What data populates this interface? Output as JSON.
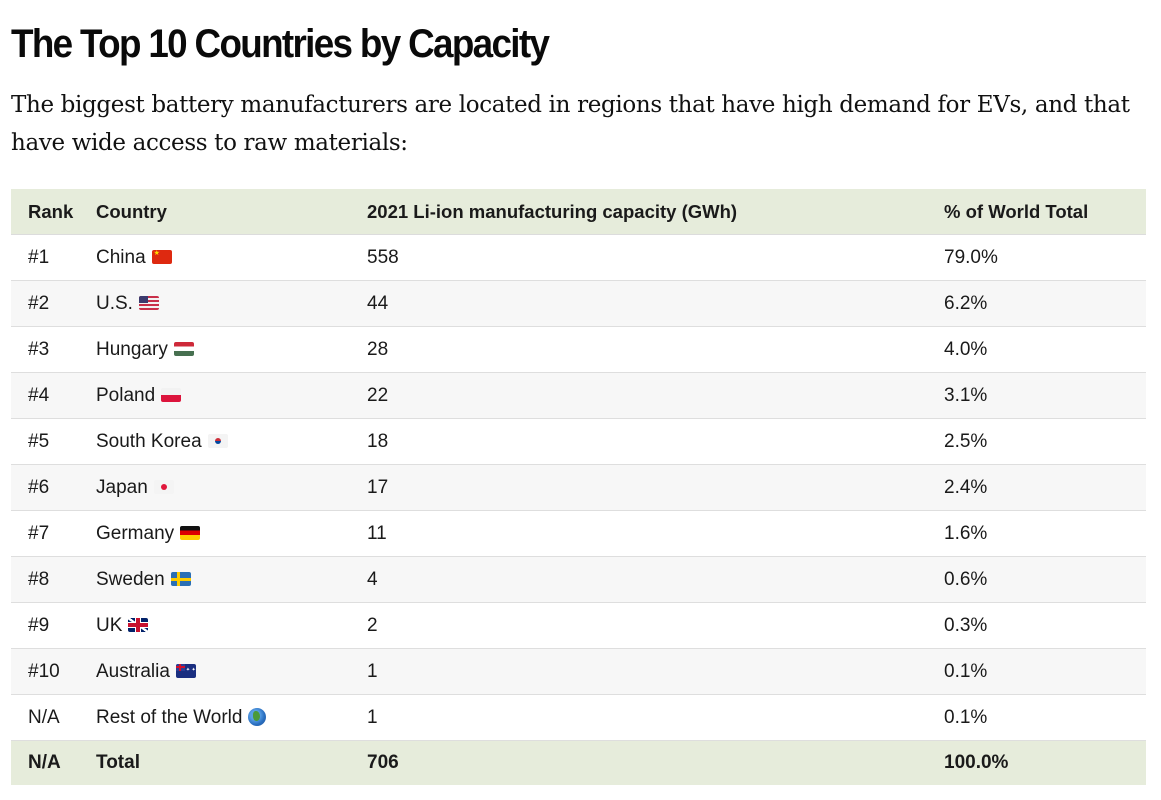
{
  "title": "The Top 10 Countries by Capacity",
  "intro": "The biggest battery manufacturers are located in regions that have high demand for EVs, and that have wide access to raw materials:",
  "table": {
    "headers": {
      "rank": "Rank",
      "country": "Country",
      "capacity": "2021 Li-ion manufacturing capacity (GWh)",
      "share": "% of World Total"
    },
    "rows": [
      {
        "rank": "#1",
        "country": "China",
        "flag": "china-flag-icon",
        "capacity": "558",
        "share": "79.0%"
      },
      {
        "rank": "#2",
        "country": "U.S.",
        "flag": "us-flag-icon",
        "capacity": "44",
        "share": "6.2%"
      },
      {
        "rank": "#3",
        "country": "Hungary",
        "flag": "hungary-flag-icon",
        "capacity": "28",
        "share": "4.0%"
      },
      {
        "rank": "#4",
        "country": "Poland",
        "flag": "poland-flag-icon",
        "capacity": "22",
        "share": "3.1%"
      },
      {
        "rank": "#5",
        "country": "South Korea",
        "flag": "south-korea-flag-icon",
        "capacity": "18",
        "share": "2.5%"
      },
      {
        "rank": "#6",
        "country": "Japan",
        "flag": "japan-flag-icon",
        "capacity": "17",
        "share": "2.4%"
      },
      {
        "rank": "#7",
        "country": "Germany",
        "flag": "germany-flag-icon",
        "capacity": "11",
        "share": "1.6%"
      },
      {
        "rank": "#8",
        "country": "Sweden",
        "flag": "sweden-flag-icon",
        "capacity": "4",
        "share": "0.6%"
      },
      {
        "rank": "#9",
        "country": "UK",
        "flag": "uk-flag-icon",
        "capacity": "2",
        "share": "0.3%"
      },
      {
        "rank": "#10",
        "country": "Australia",
        "flag": "australia-flag-icon",
        "capacity": "1",
        "share": "0.1%"
      },
      {
        "rank": "N/A",
        "country": "Rest of the World",
        "flag": "globe-icon",
        "capacity": "1",
        "share": "0.1%"
      }
    ],
    "total": {
      "rank": "N/A",
      "country": "Total",
      "capacity": "706",
      "share": "100.0%"
    }
  },
  "colors": {
    "header_bg": "#e6ecdb",
    "row_alt_bg": "#f7f7f7",
    "row_border": "#dedede"
  }
}
